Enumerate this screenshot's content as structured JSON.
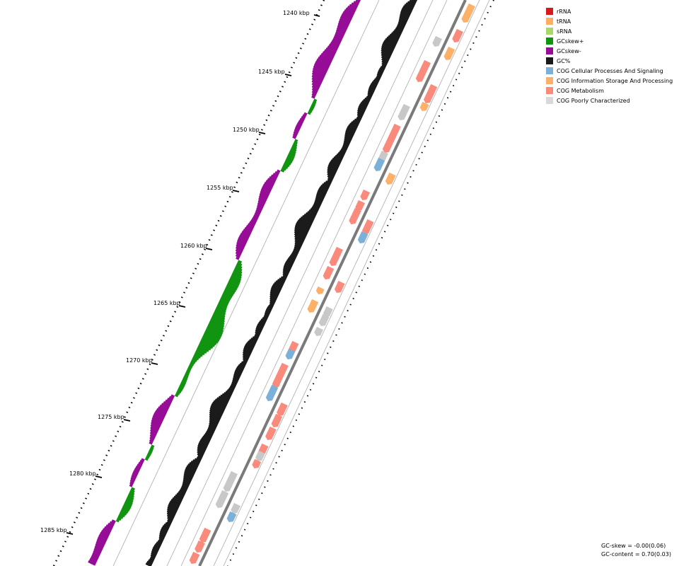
{
  "ticks": [
    "1240 kbp",
    "1245 kbp",
    "1250 kbp",
    "1255 kbp",
    "1260 kbp",
    "1265 kbp",
    "1270 kbp",
    "1275 kbp",
    "1280 kbp",
    "1285 kbp"
  ],
  "legend": [
    {
      "label": "rRNA",
      "color": "#d7191c"
    },
    {
      "label": "tRNA",
      "color": "#fdae61"
    },
    {
      "label": "sRNA",
      "color": "#a6d96a"
    },
    {
      "label": "GCskew+",
      "color": "#109410"
    },
    {
      "label": "GCskew-",
      "color": "#960c96"
    },
    {
      "label": "GC%",
      "color": "#1a1a1a"
    },
    {
      "label": "COG Cellular Processes And Signaling",
      "color": "#7bb0d8"
    },
    {
      "label": "COG Information Storage And Processing",
      "color": "#fcb068"
    },
    {
      "label": "COG Metabolism",
      "color": "#f98a7c"
    },
    {
      "label": "COG Poorly Characterized",
      "color": "#d9d9d9"
    }
  ],
  "stats": {
    "gc_skew": "GC-skew = -0.00(0.06)",
    "gc_content": "GC-content = 0.70(0.03)"
  }
}
